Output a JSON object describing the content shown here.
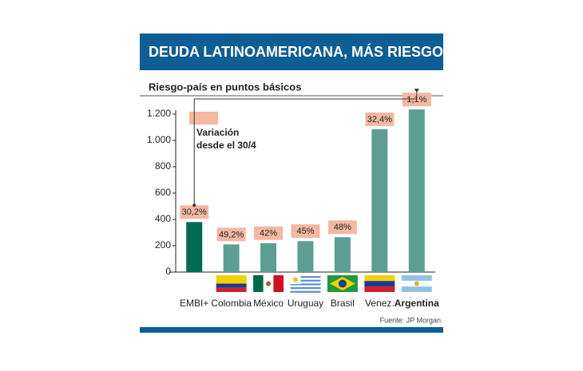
{
  "chart_data": {
    "type": "bar",
    "title": "DEUDA LATINOAMERICANA, MÁS RIESGOSA",
    "subtitle": "Riesgo-país en puntos básicos",
    "categories": [
      "EMBI+",
      "Colombia",
      "México",
      "Uruguay",
      "Brasil",
      "Venez.",
      "Argentina"
    ],
    "values": [
      380,
      210,
      220,
      235,
      265,
      1085,
      1235
    ],
    "colors": [
      "#006b50",
      "#5c9e92",
      "#5c9e92",
      "#5c9e92",
      "#5c9e92",
      "#5c9e92",
      "#5c9e92"
    ],
    "variation_label": "Variación desde el 30/4",
    "variations": [
      30.2,
      49.2,
      42,
      45,
      48,
      32.4,
      1.1
    ],
    "variation_labels": [
      "30,2%",
      "49,2%",
      "42%",
      "45%",
      "48%",
      "32,4%",
      "1,1%"
    ],
    "ylim": [
      0,
      1200
    ],
    "yticks": [
      0,
      200,
      400,
      600,
      800,
      {
        "value": 1000,
        "label": "1.000"
      },
      {
        "value": 1200,
        "label": "1.200"
      }
    ],
    "source": "Fuente: JP Morgan"
  }
}
